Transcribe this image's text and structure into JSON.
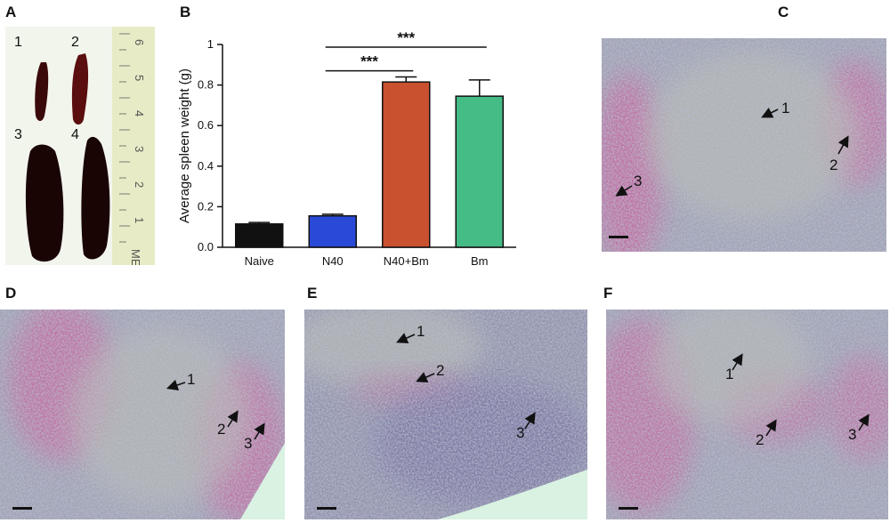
{
  "panels": {
    "a": {
      "letter": "A",
      "spleens": [
        "1",
        "2",
        "3",
        "4"
      ],
      "ruler_numbers": [
        "6",
        "5",
        "4",
        "3",
        "2",
        "1"
      ],
      "ruler_text": "METRIC"
    },
    "b": {
      "letter": "B"
    },
    "c": {
      "letter": "C",
      "arrows": [
        "1",
        "2",
        "3"
      ]
    },
    "d": {
      "letter": "D",
      "arrows": [
        "1",
        "2",
        "3"
      ]
    },
    "e": {
      "letter": "E",
      "arrows": [
        "1",
        "2",
        "3"
      ]
    },
    "f": {
      "letter": "F",
      "arrows": [
        "1",
        "2",
        "3"
      ]
    }
  },
  "colors": {
    "naive": "#111111",
    "n40": "#2a49d6",
    "n40bm": "#c9512f",
    "bm": "#45bb86",
    "stain_pink": "#c0558f",
    "stain_purple": "#6e6a9e"
  },
  "chart_data": {
    "type": "bar",
    "categories": [
      "Naive",
      "N40",
      "N40+Bm",
      "Bm"
    ],
    "values": [
      0.115,
      0.155,
      0.815,
      0.745
    ],
    "errors": [
      0.007,
      0.008,
      0.025,
      0.08
    ],
    "ylabel": "Average spleen weight (g)",
    "ylim": [
      0,
      1
    ],
    "yticks": [
      "0.0",
      "0.2",
      "0.4",
      "0.6",
      "0.8",
      "1"
    ],
    "significance": [
      {
        "from": "N40",
        "to": "N40+Bm",
        "label": "***"
      },
      {
        "from": "N40",
        "to": "Bm",
        "label": "***"
      }
    ]
  }
}
